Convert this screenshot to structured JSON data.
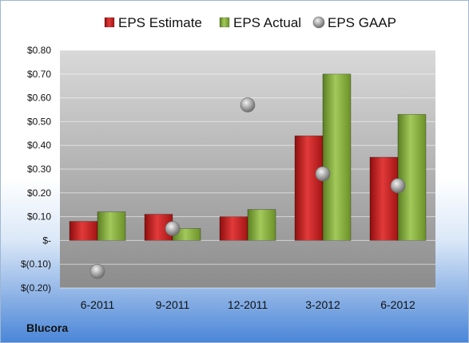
{
  "chart_data": {
    "type": "bar",
    "title": "",
    "xlabel": "",
    "ylabel": "",
    "categories": [
      "6-2011",
      "9-2011",
      "12-2011",
      "3-2012",
      "6-2012"
    ],
    "series": [
      {
        "name": "EPS Estimate",
        "kind": "bar",
        "color": "#cc1f1f",
        "values": [
          0.08,
          0.11,
          0.1,
          0.44,
          0.35
        ]
      },
      {
        "name": "EPS Actual",
        "kind": "bar",
        "color": "#88b23d",
        "values": [
          0.12,
          0.05,
          0.13,
          0.7,
          0.53
        ]
      },
      {
        "name": "EPS GAAP",
        "kind": "marker",
        "color": "#9a9a9a",
        "values": [
          -0.13,
          0.05,
          0.57,
          0.28,
          0.23
        ]
      }
    ],
    "ylim": [
      -0.2,
      0.8
    ],
    "yticks": [
      -0.2,
      -0.1,
      0,
      0.1,
      0.2,
      0.3,
      0.4,
      0.5,
      0.6,
      0.7,
      0.8
    ],
    "ytick_labels": [
      "$(0.20)",
      "$(0.10)",
      "$-",
      "$0.10",
      "$0.20",
      "$0.30",
      "$0.40",
      "$0.50",
      "$0.60",
      "$0.70",
      "$0.80"
    ],
    "grid": true,
    "legend_position": "top"
  },
  "company": "Blucora"
}
